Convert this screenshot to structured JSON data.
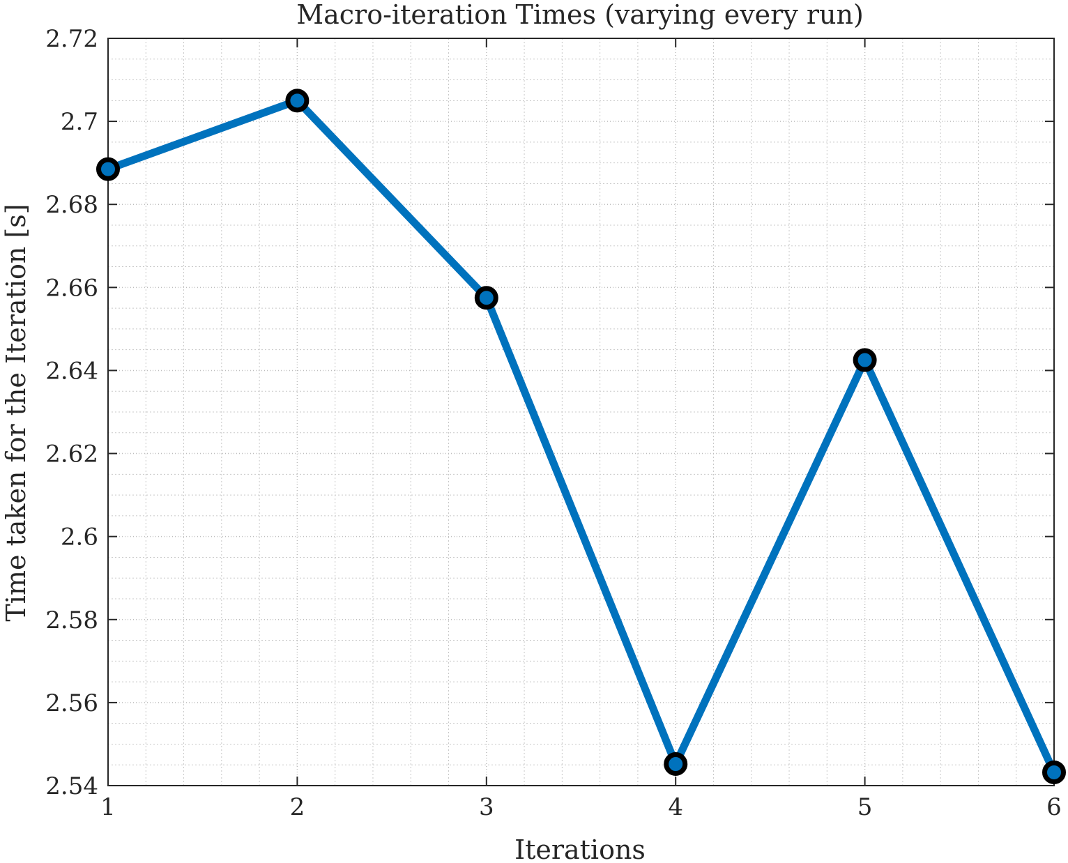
{
  "chart_data": {
    "type": "line",
    "title": "Macro-iteration Times (varying every run)",
    "xlabel": "Iterations",
    "ylabel": "Time taken for the Iteration [s]",
    "xlim": [
      1,
      6
    ],
    "ylim": [
      2.54,
      2.72
    ],
    "x_ticks": [
      1,
      2,
      3,
      4,
      5,
      6
    ],
    "x_tick_labels": [
      "1",
      "2",
      "3",
      "4",
      "5",
      "6"
    ],
    "y_ticks": [
      2.54,
      2.56,
      2.58,
      2.6,
      2.62,
      2.64,
      2.66,
      2.68,
      2.7,
      2.72
    ],
    "y_tick_labels": [
      "2.54",
      "2.56",
      "2.58",
      "2.6",
      "2.62",
      "2.64",
      "2.66",
      "2.68",
      "2.7",
      "2.72"
    ],
    "grid": true,
    "minor_grid": true,
    "series": [
      {
        "x": [
          1,
          2,
          3,
          4,
          5,
          6
        ],
        "values": [
          2.6885,
          2.705,
          2.6575,
          2.5452,
          2.6425,
          2.5432
        ],
        "color": "#0072BD",
        "marker": "circle",
        "marker_edge_color": "#000000"
      }
    ]
  }
}
